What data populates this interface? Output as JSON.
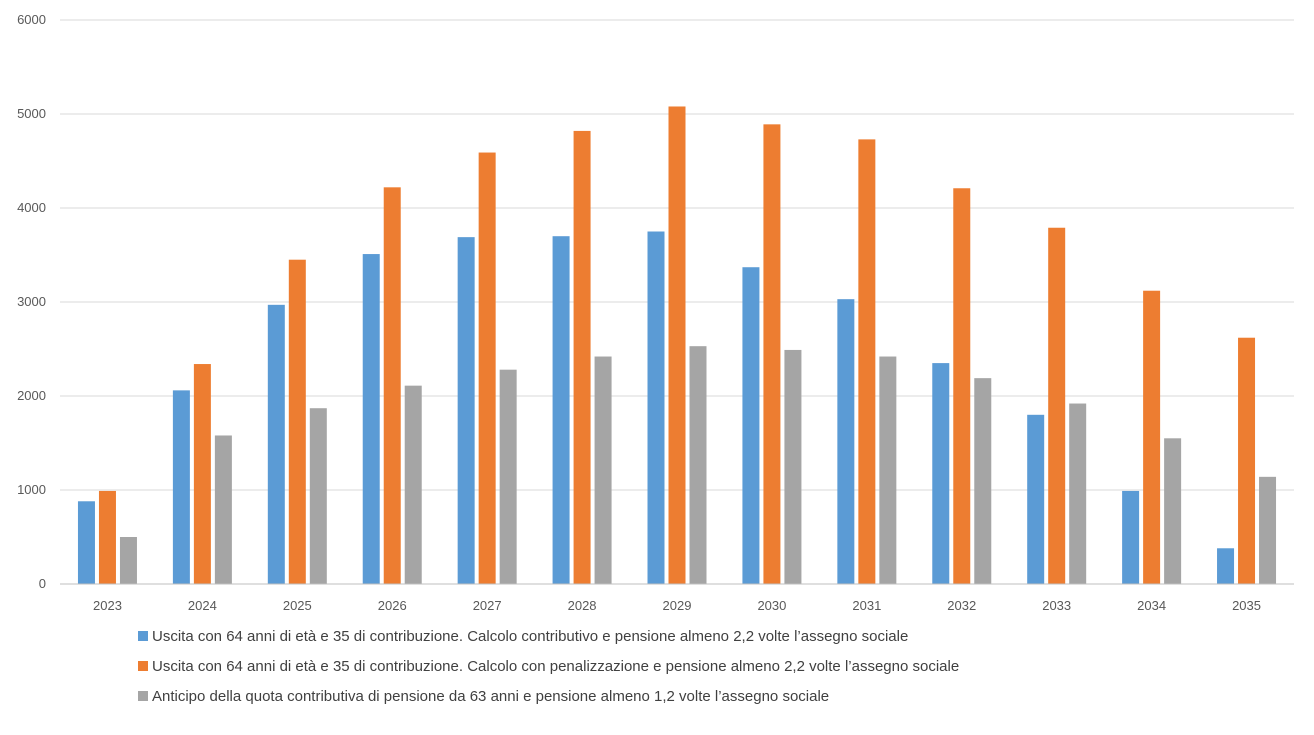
{
  "chart_data": {
    "type": "bar",
    "categories": [
      "2023",
      "2024",
      "2025",
      "2026",
      "2027",
      "2028",
      "2029",
      "2030",
      "2031",
      "2032",
      "2033",
      "2034",
      "2035"
    ],
    "series": [
      {
        "name": "Uscita con 64 anni di età e 35 di contribuzione. Calcolo contributivo e pensione almeno 2,2 volte l’assegno sociale",
        "color": "#5B9BD5",
        "values": [
          880,
          2060,
          2970,
          3510,
          3690,
          3700,
          3750,
          3370,
          3030,
          2350,
          1800,
          990,
          380
        ]
      },
      {
        "name": "Uscita con 64 anni di età e 35 di contribuzione. Calcolo con penalizzazione e pensione almeno 2,2 volte l’assegno sociale",
        "color": "#ED7D31",
        "values": [
          990,
          2340,
          3450,
          4220,
          4590,
          4820,
          5080,
          4890,
          4730,
          4210,
          3790,
          3120,
          2620
        ]
      },
      {
        "name": "Anticipo della quota contributiva di pensione da 63 anni e pensione almeno 1,2 volte l’assegno sociale",
        "color": "#A5A5A5",
        "values": [
          500,
          1580,
          1870,
          2110,
          2280,
          2420,
          2530,
          2490,
          2420,
          2190,
          1920,
          1550,
          1140
        ]
      }
    ],
    "yticks": [
      "0",
      "1000",
      "2000",
      "3000",
      "4000",
      "5000",
      "6000"
    ],
    "ylim": [
      0,
      6000
    ],
    "grid": true,
    "legend_position": "bottom"
  }
}
